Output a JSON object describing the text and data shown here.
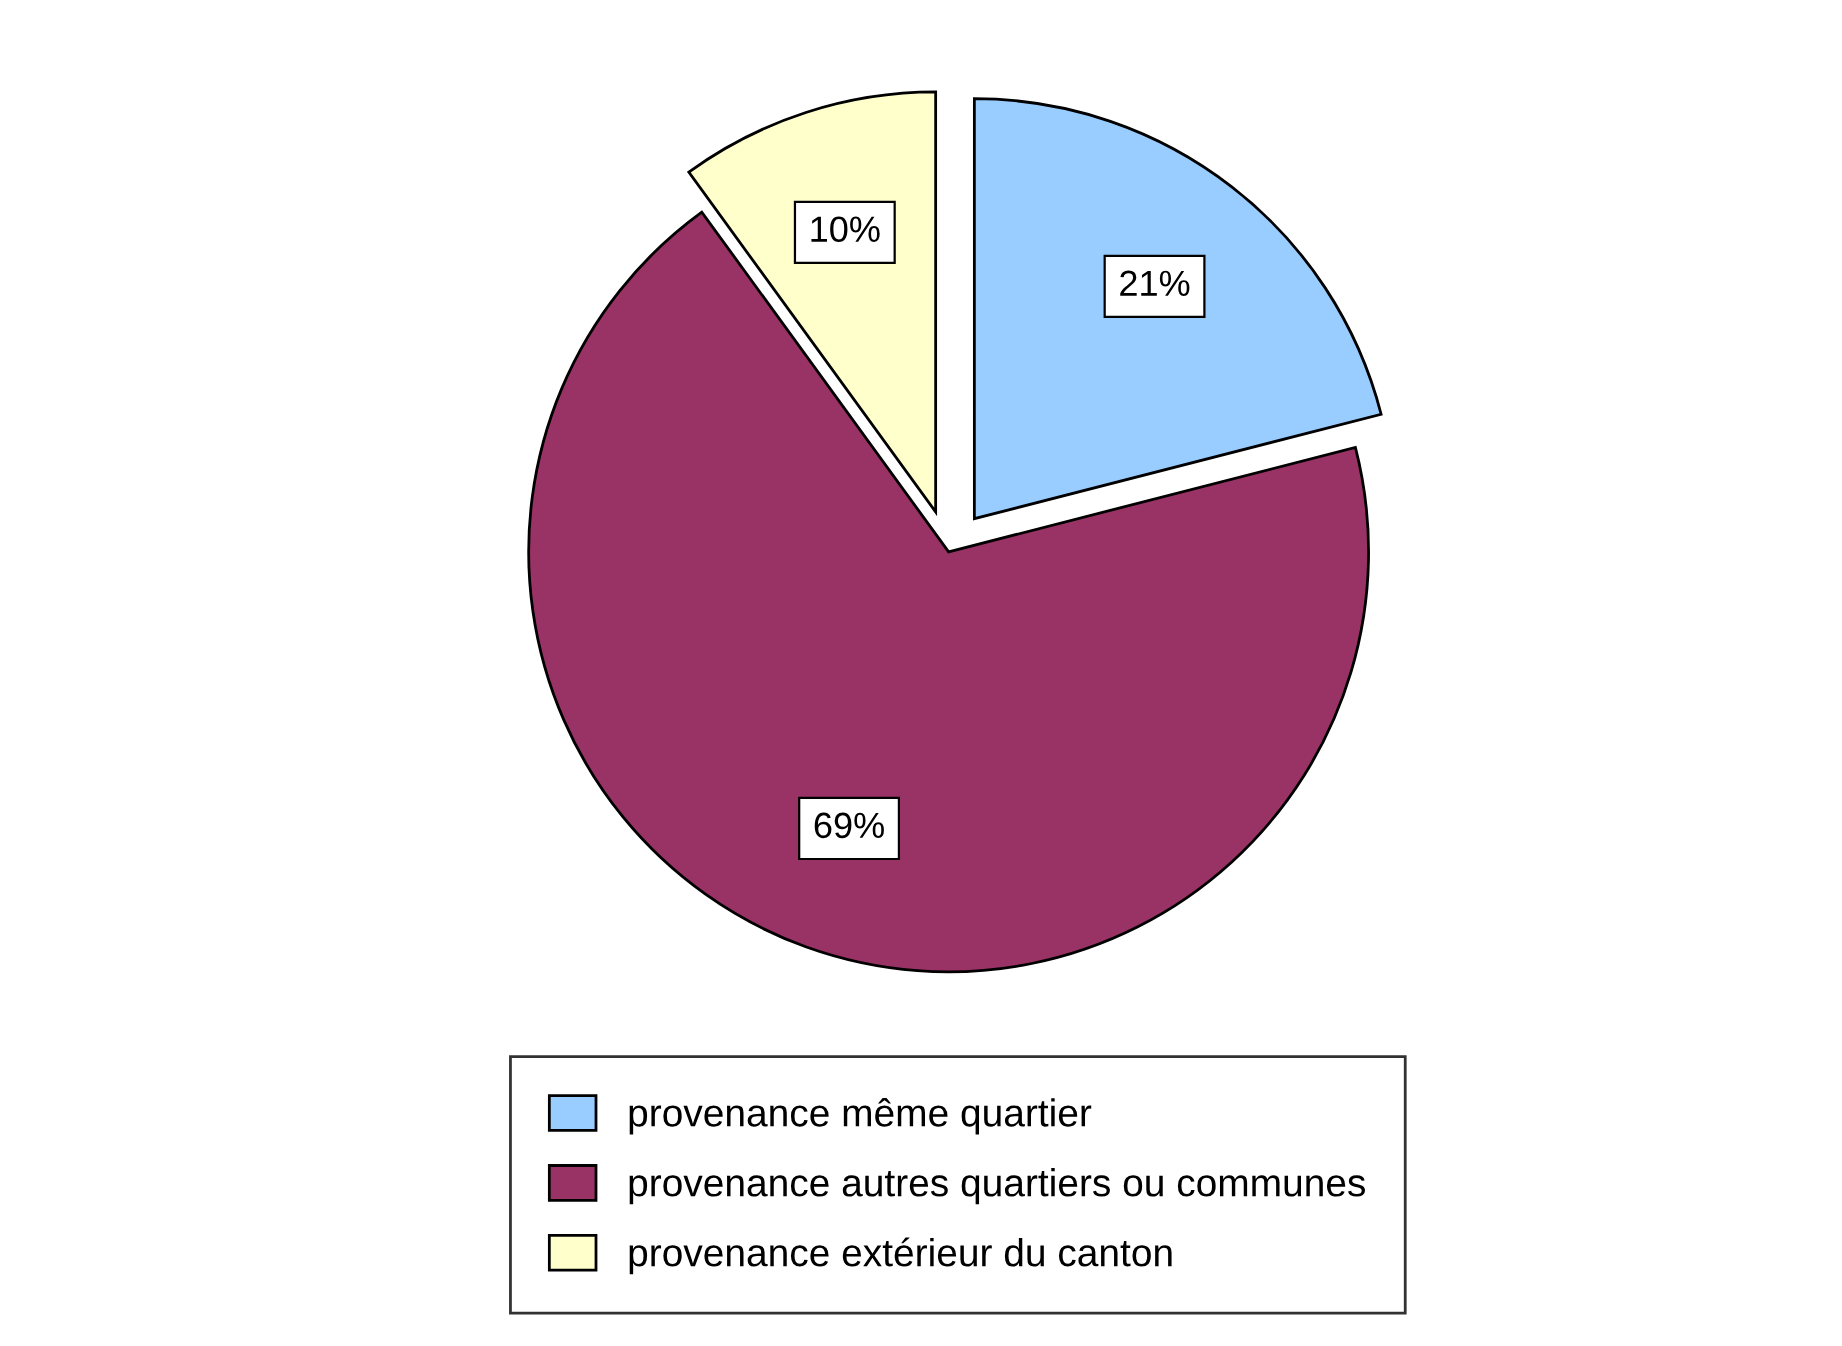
{
  "chart_data": {
    "type": "pie",
    "categories": [
      "provenance même quartier",
      "provenance autres quartiers ou communes",
      "provenance extérieur du canton"
    ],
    "values": [
      21,
      69,
      10
    ],
    "colors": [
      "#99ccff",
      "#993366",
      "#ffffcc"
    ],
    "value_labels": [
      "21%",
      "69%",
      "10%"
    ],
    "legend": "bottom"
  }
}
